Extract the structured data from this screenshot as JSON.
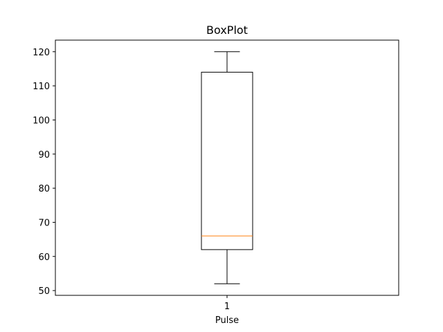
{
  "chart_data": {
    "type": "boxplot",
    "title": "BoxPlot",
    "xlabel": "Pulse",
    "ylabel": "",
    "categories": [
      "1"
    ],
    "ylim": [
      48.6,
      123.4
    ],
    "yticks": [
      50,
      60,
      70,
      80,
      90,
      100,
      110,
      120
    ],
    "boxes": [
      {
        "label": "1",
        "whisker_low": 52,
        "q1": 62,
        "median": 66,
        "q3": 114,
        "whisker_high": 120
      }
    ],
    "grid": false
  },
  "colors": {
    "median": "#ff7f0e",
    "box": "#000000",
    "background": "#ffffff"
  }
}
